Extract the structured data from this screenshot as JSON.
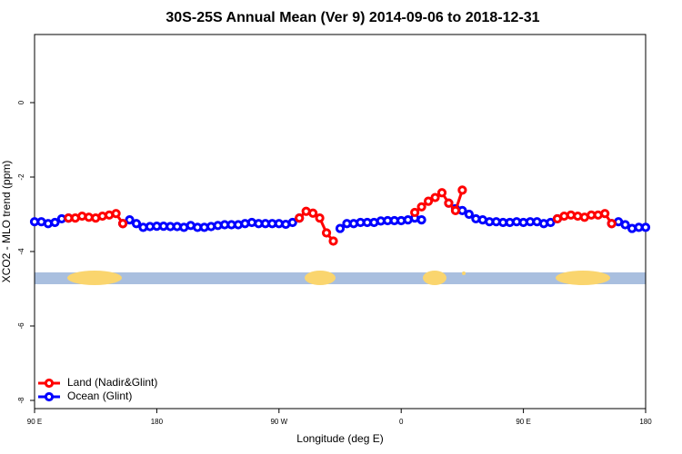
{
  "chart_data": {
    "type": "line",
    "title": "30S-25S Annual Mean (Ver 9)   2014-09-06 to 2018-12-31",
    "x_label": "Longitude (deg E)",
    "y_label": "XCO2 - MLO trend (ppm)",
    "xlim": [
      90,
      540
    ],
    "ylim": [
      -8.22,
      1.83
    ],
    "xticks": [
      {
        "value": 90,
        "label": "90 E"
      },
      180,
      {
        "value": 270,
        "label": "90 W"
      },
      {
        "value": 360,
        "label": "0"
      },
      {
        "value": 450,
        "label": "90 E"
      },
      {
        "value": 540,
        "label": "180"
      }
    ],
    "yticks": [
      0,
      -2,
      -4,
      -6,
      -8
    ],
    "legend": "bottom-left",
    "x": [
      90,
      95,
      100,
      105,
      110,
      115,
      120,
      125,
      130,
      135,
      140,
      145,
      150,
      155,
      160,
      165,
      170,
      175,
      180,
      185,
      190,
      195,
      200,
      205,
      210,
      215,
      220,
      225,
      230,
      235,
      240,
      245,
      250,
      255,
      260,
      265,
      270,
      275,
      280,
      285,
      290,
      295,
      300,
      305,
      310,
      315,
      320,
      325,
      330,
      335,
      340,
      345,
      350,
      355,
      360,
      365,
      370,
      375,
      380,
      385,
      390,
      395,
      400,
      405,
      410,
      415,
      420,
      425,
      430,
      435,
      440,
      445,
      450,
      455,
      460,
      465,
      470,
      475,
      480,
      485,
      490,
      495,
      500,
      505,
      510,
      515,
      520,
      525,
      530,
      535,
      540
    ],
    "series": [
      {
        "name": "Ocean (Glint)",
        "color": "#0000ff",
        "values": [
          -3.2,
          -3.2,
          -3.25,
          -3.22,
          -3.12,
          -3.1,
          null,
          null,
          null,
          null,
          null,
          null,
          null,
          -3.25,
          -3.15,
          -3.25,
          -3.35,
          -3.33,
          -3.32,
          -3.32,
          -3.33,
          -3.33,
          -3.35,
          -3.3,
          -3.35,
          -3.35,
          -3.33,
          -3.3,
          -3.28,
          -3.28,
          -3.28,
          -3.25,
          -3.22,
          -3.25,
          -3.25,
          -3.25,
          -3.25,
          -3.27,
          -3.22,
          -3.1,
          null,
          null,
          null,
          null,
          null,
          -3.38,
          -3.25,
          -3.25,
          -3.22,
          -3.22,
          -3.22,
          -3.18,
          -3.17,
          -3.17,
          -3.17,
          -3.15,
          -3.1,
          -3.15,
          null,
          null,
          null,
          -2.7,
          -2.85,
          -2.9,
          -3.0,
          -3.12,
          -3.15,
          -3.2,
          -3.2,
          -3.22,
          -3.22,
          -3.2,
          -3.22,
          -3.2,
          -3.2,
          -3.25,
          -3.22,
          -3.12,
          null,
          null,
          null,
          null,
          null,
          null,
          null,
          -3.25,
          -3.2,
          -3.28,
          -3.38,
          -3.35,
          -3.35
        ]
      },
      {
        "name": "Land (Nadir&Glint)",
        "color": "#ff0000",
        "values": [
          null,
          null,
          null,
          null,
          null,
          -3.1,
          -3.1,
          -3.05,
          -3.08,
          -3.1,
          -3.05,
          -3.02,
          -2.98,
          -3.25,
          null,
          null,
          null,
          null,
          null,
          null,
          null,
          null,
          null,
          null,
          null,
          null,
          null,
          null,
          null,
          null,
          null,
          null,
          null,
          null,
          null,
          null,
          null,
          null,
          null,
          -3.1,
          -2.92,
          -2.97,
          -3.1,
          -3.5,
          -3.72,
          null,
          null,
          null,
          null,
          null,
          null,
          null,
          null,
          null,
          null,
          null,
          -2.95,
          -2.8,
          -2.65,
          -2.55,
          -2.42,
          -2.7,
          -2.9,
          -2.35,
          null,
          null,
          null,
          null,
          null,
          null,
          null,
          null,
          null,
          null,
          null,
          null,
          null,
          -3.12,
          -3.05,
          -3.02,
          -3.05,
          -3.08,
          -3.02,
          -3.02,
          -2.98,
          -3.25,
          null,
          null,
          null,
          null,
          null
        ]
      }
    ]
  }
}
